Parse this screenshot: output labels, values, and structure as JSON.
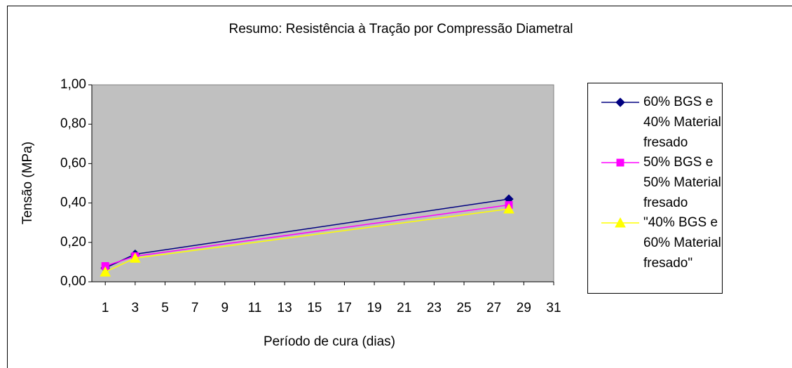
{
  "chart_data": {
    "type": "line",
    "title": "Resumo: Resistência à Tração por Compressão Diametral",
    "x_label": "Período de cura (dias)",
    "y_label": "Tensão (MPa)",
    "x": [
      1,
      3,
      28
    ],
    "series": [
      {
        "name": "60% BGS e 40% Material fresado",
        "color": "#000080",
        "marker": "diamond",
        "values": [
          0.07,
          0.14,
          0.42
        ]
      },
      {
        "name": "50% BGS e 50% Material fresado",
        "color": "#ff00ff",
        "marker": "square",
        "values": [
          0.08,
          0.13,
          0.39
        ]
      },
      {
        "name": "\"40% BGS e 60% Material fresado\"",
        "color": "#ffff00",
        "marker": "triangle",
        "values": [
          0.05,
          0.12,
          0.37
        ]
      }
    ],
    "xlim": [
      0.1,
      31
    ],
    "xticks": [
      1,
      3,
      5,
      7,
      9,
      11,
      13,
      15,
      17,
      19,
      21,
      23,
      25,
      27,
      29,
      31
    ],
    "ylim": [
      0,
      1
    ],
    "yticks": [
      {
        "value": 0,
        "label": "0,00"
      },
      {
        "value": 0.2,
        "label": "0,20"
      },
      {
        "value": 0.4,
        "label": "0,40"
      },
      {
        "value": 0.6,
        "label": "0,60"
      },
      {
        "value": 0.8,
        "label": "0,80"
      },
      {
        "value": 1,
        "label": "1,00"
      }
    ],
    "plot_background": "#c0c0c0",
    "legend": "right"
  }
}
